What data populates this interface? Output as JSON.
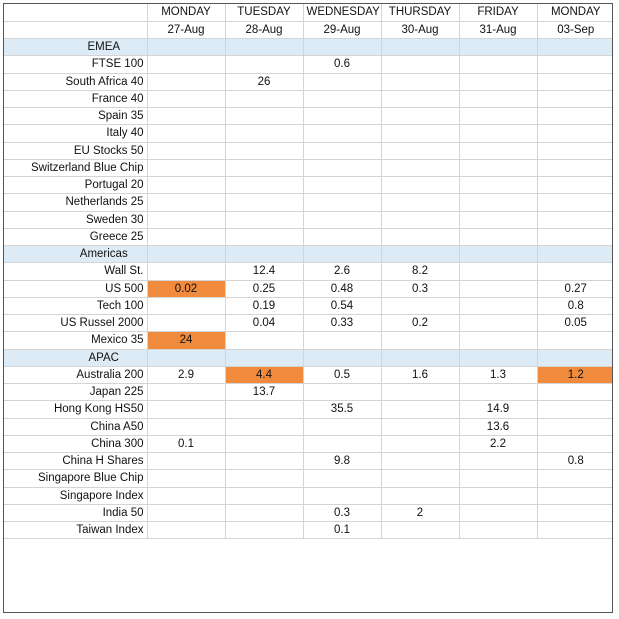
{
  "days": [
    "MONDAY",
    "TUESDAY",
    "WEDNESDAY",
    "THURSDAY",
    "FRIDAY",
    "MONDAY"
  ],
  "dates": [
    "27-Aug",
    "28-Aug",
    "29-Aug",
    "30-Aug",
    "31-Aug",
    "03-Sep"
  ],
  "colors": {
    "highlight": "#f08a3c",
    "section_band": "#ddebf7",
    "grid": "#d4d4d4"
  },
  "rows": [
    {
      "type": "section",
      "name": "EMEA"
    },
    {
      "name": "FTSE 100",
      "values": [
        "",
        "",
        "0.6",
        "",
        "",
        ""
      ]
    },
    {
      "name": "South Africa 40",
      "values": [
        "",
        "26",
        "",
        "",
        "",
        ""
      ]
    },
    {
      "name": "France 40",
      "values": [
        "",
        "",
        "",
        "",
        "",
        ""
      ]
    },
    {
      "name": "Spain 35",
      "values": [
        "",
        "",
        "",
        "",
        "",
        ""
      ]
    },
    {
      "name": "Italy 40",
      "values": [
        "",
        "",
        "",
        "",
        "",
        ""
      ]
    },
    {
      "name": "EU Stocks 50",
      "values": [
        "",
        "",
        "",
        "",
        "",
        ""
      ]
    },
    {
      "name": "Switzerland Blue Chip",
      "values": [
        "",
        "",
        "",
        "",
        "",
        ""
      ]
    },
    {
      "name": "Portugal 20",
      "values": [
        "",
        "",
        "",
        "",
        "",
        ""
      ]
    },
    {
      "name": "Netherlands 25",
      "values": [
        "",
        "",
        "",
        "",
        "",
        ""
      ]
    },
    {
      "name": "Sweden 30",
      "values": [
        "",
        "",
        "",
        "",
        "",
        ""
      ]
    },
    {
      "name": "Greece 25",
      "values": [
        "",
        "",
        "",
        "",
        "",
        ""
      ]
    },
    {
      "type": "section",
      "name": "Americas"
    },
    {
      "name": "Wall St.",
      "values": [
        "",
        "12.4",
        "2.6",
        "8.2",
        "",
        ""
      ]
    },
    {
      "name": "US 500",
      "values": [
        "0.02",
        "0.25",
        "0.48",
        "0.3",
        "",
        "0.27"
      ],
      "highlight": [
        0
      ]
    },
    {
      "name": "Tech 100",
      "values": [
        "",
        "0.19",
        "0.54",
        "",
        "",
        "0.8"
      ]
    },
    {
      "name": "US Russel 2000",
      "values": [
        "",
        "0.04",
        "0.33",
        "0.2",
        "",
        "0.05"
      ]
    },
    {
      "name": "Mexico 35",
      "values": [
        "24",
        "",
        "",
        "",
        "",
        ""
      ],
      "highlight": [
        0
      ]
    },
    {
      "type": "section",
      "name": "APAC"
    },
    {
      "name": "Australia 200",
      "values": [
        "2.9",
        "4.4",
        "0.5",
        "1.6",
        "1.3",
        "1.2"
      ],
      "highlight": [
        1,
        5
      ]
    },
    {
      "name": "Japan 225",
      "values": [
        "",
        "13.7",
        "",
        "",
        "",
        ""
      ]
    },
    {
      "name": "Hong Kong HS50",
      "values": [
        "",
        "",
        "35.5",
        "",
        "14.9",
        ""
      ]
    },
    {
      "name": "China A50",
      "values": [
        "",
        "",
        "",
        "",
        "13.6",
        ""
      ]
    },
    {
      "name": "China 300",
      "values": [
        "0.1",
        "",
        "",
        "",
        "2.2",
        ""
      ]
    },
    {
      "name": "China H Shares",
      "values": [
        "",
        "",
        "9.8",
        "",
        "",
        "0.8"
      ]
    },
    {
      "name": "Singapore Blue Chip",
      "values": [
        "",
        "",
        "",
        "",
        "",
        ""
      ]
    },
    {
      "name": "Singapore Index",
      "values": [
        "",
        "",
        "",
        "",
        "",
        ""
      ]
    },
    {
      "name": "India 50",
      "values": [
        "",
        "",
        "0.3",
        "2",
        "",
        ""
      ]
    },
    {
      "name": "Taiwan Index",
      "values": [
        "",
        "",
        "0.1",
        "",
        "",
        ""
      ]
    }
  ]
}
